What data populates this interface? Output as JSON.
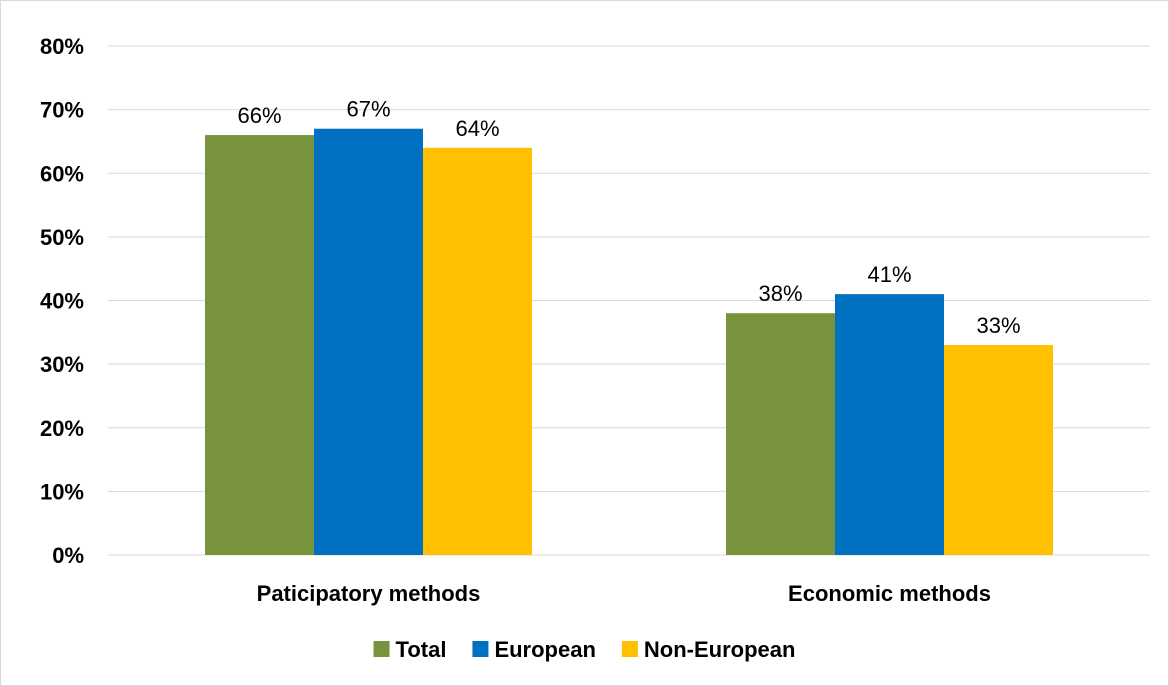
{
  "chart_data": {
    "type": "bar",
    "title": "",
    "xlabel": "",
    "ylabel": "",
    "categories": [
      "Paticipatory methods",
      "Economic methods"
    ],
    "series": [
      {
        "name": "Total",
        "color": "#77933c",
        "values": [
          66,
          38
        ],
        "labels": [
          "66%",
          "38%"
        ]
      },
      {
        "name": "European",
        "color": "#0070c0",
        "values": [
          67,
          41
        ],
        "labels": [
          "67%",
          "41%"
        ]
      },
      {
        "name": "Non-European",
        "color": "#ffc000",
        "values": [
          64,
          33
        ],
        "labels": [
          "64%",
          "33%"
        ]
      }
    ],
    "ylim": [
      0,
      80
    ],
    "yticks": [
      0,
      10,
      20,
      30,
      40,
      50,
      60,
      70,
      80
    ],
    "ytick_labels": [
      "0%",
      "10%",
      "20%",
      "30%",
      "40%",
      "50%",
      "60%",
      "70%",
      "80%"
    ],
    "grid": true,
    "legend": "bottom"
  }
}
